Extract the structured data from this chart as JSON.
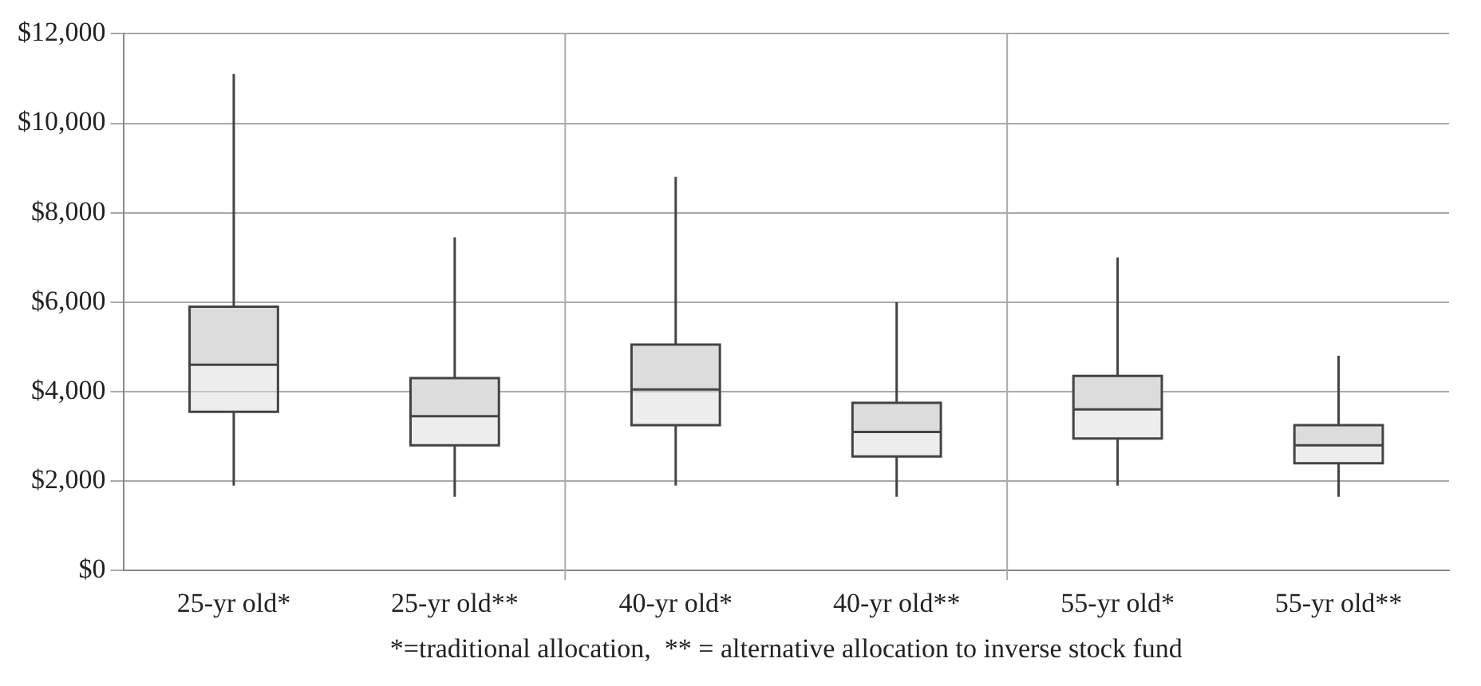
{
  "chart_data": {
    "type": "box",
    "categories": [
      "25-yr old*",
      "25-yr old**",
      "40-yr old*",
      "40-yr old**",
      "55-yr old*",
      "55-yr old**"
    ],
    "boxes": [
      {
        "low": 1900,
        "q1": 3550,
        "median": 4600,
        "q3": 5900,
        "high": 11100
      },
      {
        "low": 1650,
        "q1": 2800,
        "median": 3450,
        "q3": 4300,
        "high": 7450
      },
      {
        "low": 1900,
        "q1": 3250,
        "median": 4050,
        "q3": 5050,
        "high": 8800
      },
      {
        "low": 1650,
        "q1": 2550,
        "median": 3100,
        "q3": 3750,
        "high": 6000
      },
      {
        "low": 1900,
        "q1": 2950,
        "median": 3600,
        "q3": 4350,
        "high": 7000
      },
      {
        "low": 1650,
        "q1": 2400,
        "median": 2800,
        "q3": 3250,
        "high": 4800
      }
    ],
    "color": "#dcdcdc",
    "ylim": [
      0,
      12000
    ],
    "yticks": [
      {
        "value": 0,
        "label": "$0"
      },
      {
        "value": 2000,
        "label": "$2,000"
      },
      {
        "value": 4000,
        "label": "$4,000"
      },
      {
        "value": 6000,
        "label": "$6,000"
      },
      {
        "value": 8000,
        "label": "$8,000"
      },
      {
        "value": 10000,
        "label": "$10,000"
      },
      {
        "value": 12000,
        "label": "$12,000"
      }
    ],
    "grid": true,
    "legend": false,
    "annotations": [
      "*=traditional allocation,  ** = alternative allocation to inverse stock fund"
    ]
  }
}
